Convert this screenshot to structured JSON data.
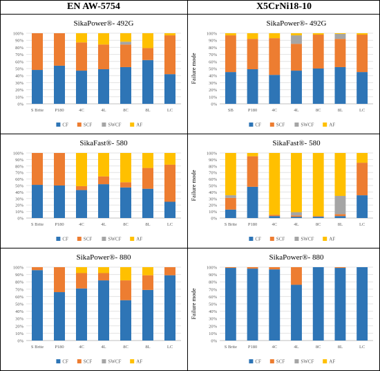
{
  "columns": [
    "EN AW-5754",
    "X5CrNi18-10"
  ],
  "colors": {
    "CF": "#2e75b6",
    "SCF": "#ed7d31",
    "SWCF": "#a5a5a5",
    "AF": "#ffc000"
  },
  "ylabel": "Failure mode",
  "chart_data": [
    {
      "type": "bar",
      "stacked": true,
      "panel": "EN AW-5754",
      "title": "SikaPower®- 492G",
      "categories": [
        "S Brite",
        "P180",
        "4C",
        "4L",
        "8C",
        "8L",
        "LC"
      ],
      "series": [
        {
          "name": "CF",
          "values": [
            48,
            54,
            47,
            49,
            52,
            62,
            42
          ]
        },
        {
          "name": "SCF",
          "values": [
            52,
            46,
            40,
            35,
            32,
            17,
            55
          ]
        },
        {
          "name": "SWCF",
          "values": [
            0,
            0,
            0,
            0,
            4,
            0,
            0
          ]
        },
        {
          "name": "AF",
          "values": [
            0,
            0,
            13,
            16,
            12,
            21,
            3
          ]
        }
      ],
      "ylabel": "",
      "ylim": [
        0,
        100
      ],
      "legend": "bottom"
    },
    {
      "type": "bar",
      "stacked": true,
      "panel": "X5CrNi18-10",
      "title": "SikaPower®- 492G",
      "categories": [
        "SB",
        "P180",
        "4C",
        "4L",
        "8C",
        "8L",
        "LC"
      ],
      "series": [
        {
          "name": "CF",
          "values": [
            45,
            49,
            41,
            47,
            50,
            52,
            45
          ]
        },
        {
          "name": "SCF",
          "values": [
            52,
            43,
            52,
            38,
            48,
            40,
            53
          ]
        },
        {
          "name": "SWCF",
          "values": [
            0,
            0,
            0,
            12,
            0,
            7,
            0
          ]
        },
        {
          "name": "AF",
          "values": [
            3,
            8,
            7,
            3,
            2,
            1,
            2
          ]
        }
      ],
      "ylabel": "Failure mode",
      "ylim": [
        0,
        100
      ],
      "legend": "bottom"
    },
    {
      "type": "bar",
      "stacked": true,
      "panel": "EN AW-5754",
      "title": "SikaFast®- 580",
      "categories": [
        "S Brite",
        "P180",
        "4C",
        "4L",
        "8C",
        "8L",
        "LC"
      ],
      "series": [
        {
          "name": "CF",
          "values": [
            51,
            50,
            43,
            52,
            47,
            45,
            25
          ]
        },
        {
          "name": "SCF",
          "values": [
            49,
            50,
            6,
            12,
            8,
            32,
            57
          ]
        },
        {
          "name": "SWCF",
          "values": [
            0,
            0,
            0,
            0,
            0,
            0,
            0
          ]
        },
        {
          "name": "AF",
          "values": [
            0,
            0,
            51,
            36,
            45,
            23,
            18
          ]
        }
      ],
      "ylabel": "",
      "ylim": [
        0,
        100
      ],
      "legend": "bottom"
    },
    {
      "type": "bar",
      "stacked": true,
      "panel": "X5CrNi18-10",
      "title": "SikaFast®- 580",
      "categories": [
        "S Brite",
        "P180",
        "4C",
        "4L",
        "8C",
        "8L",
        "LC"
      ],
      "series": [
        {
          "name": "CF",
          "values": [
            13,
            48,
            3,
            2,
            2,
            3,
            35
          ]
        },
        {
          "name": "SCF",
          "values": [
            18,
            47,
            2,
            2,
            1,
            3,
            50
          ]
        },
        {
          "name": "SWCF",
          "values": [
            4,
            0,
            0,
            5,
            0,
            28,
            0
          ]
        },
        {
          "name": "AF",
          "values": [
            65,
            5,
            95,
            91,
            97,
            66,
            15
          ]
        }
      ],
      "ylabel": "Failure mode",
      "ylim": [
        0,
        100
      ],
      "legend": "bottom"
    },
    {
      "type": "bar",
      "stacked": true,
      "panel": "EN AW-5754",
      "title": "SikaPower®- 880",
      "categories": [
        "S Brite",
        "P180",
        "4C",
        "4L",
        "8C",
        "8L",
        "LC"
      ],
      "series": [
        {
          "name": "CF",
          "values": [
            96,
            66,
            71,
            82,
            55,
            69,
            89
          ]
        },
        {
          "name": "SCF",
          "values": [
            4,
            34,
            21,
            10,
            27,
            20,
            11
          ]
        },
        {
          "name": "SWCF",
          "values": [
            0,
            0,
            0,
            0,
            0,
            0,
            0
          ]
        },
        {
          "name": "AF",
          "values": [
            0,
            0,
            8,
            8,
            18,
            11,
            0
          ]
        }
      ],
      "ylabel": "",
      "ylim": [
        0,
        100
      ],
      "legend": "bottom"
    },
    {
      "type": "bar",
      "stacked": true,
      "panel": "X5CrNi18-10",
      "title": "SikaPower®- 880",
      "categories": [
        "S Brite",
        "P180",
        "4C",
        "4L",
        "8C",
        "8L",
        "LC"
      ],
      "series": [
        {
          "name": "CF",
          "values": [
            99,
            98,
            97,
            76,
            100,
            99,
            100
          ]
        },
        {
          "name": "SCF",
          "values": [
            1,
            2,
            3,
            24,
            0,
            1,
            0
          ]
        },
        {
          "name": "SWCF",
          "values": [
            0,
            0,
            0,
            0,
            0,
            0,
            0
          ]
        },
        {
          "name": "AF",
          "values": [
            0,
            0,
            0,
            0,
            0,
            0,
            0
          ]
        }
      ],
      "ylabel": "Failure mode",
      "ylim": [
        0,
        100
      ],
      "legend": "bottom"
    }
  ]
}
